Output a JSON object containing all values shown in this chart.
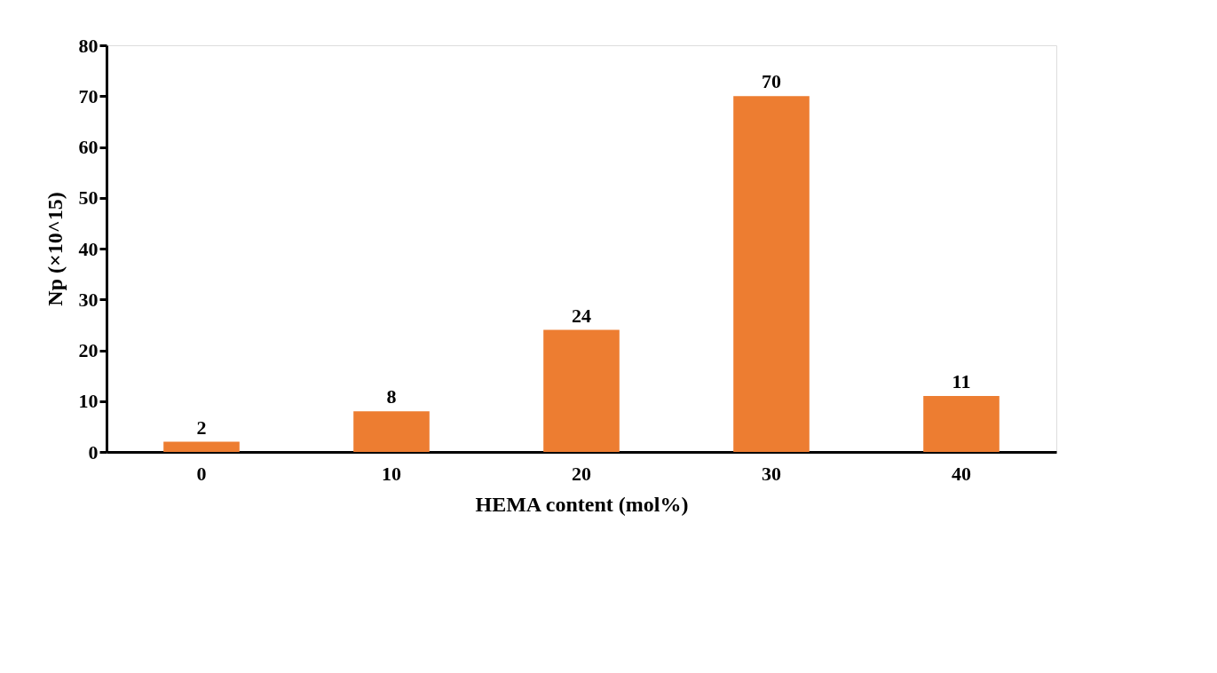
{
  "chart_data": {
    "type": "bar",
    "categories": [
      "0",
      "10",
      "20",
      "30",
      "40"
    ],
    "values": [
      2,
      8,
      24,
      70,
      11
    ],
    "color": "#ed7d31",
    "xlabel": "HEMA content (mol%)",
    "ylabel": "Np (×10^15)",
    "ylim": [
      0,
      80
    ],
    "yticks": [
      0,
      10,
      20,
      30,
      40,
      50,
      60,
      70,
      80
    ],
    "data_labels": true
  }
}
